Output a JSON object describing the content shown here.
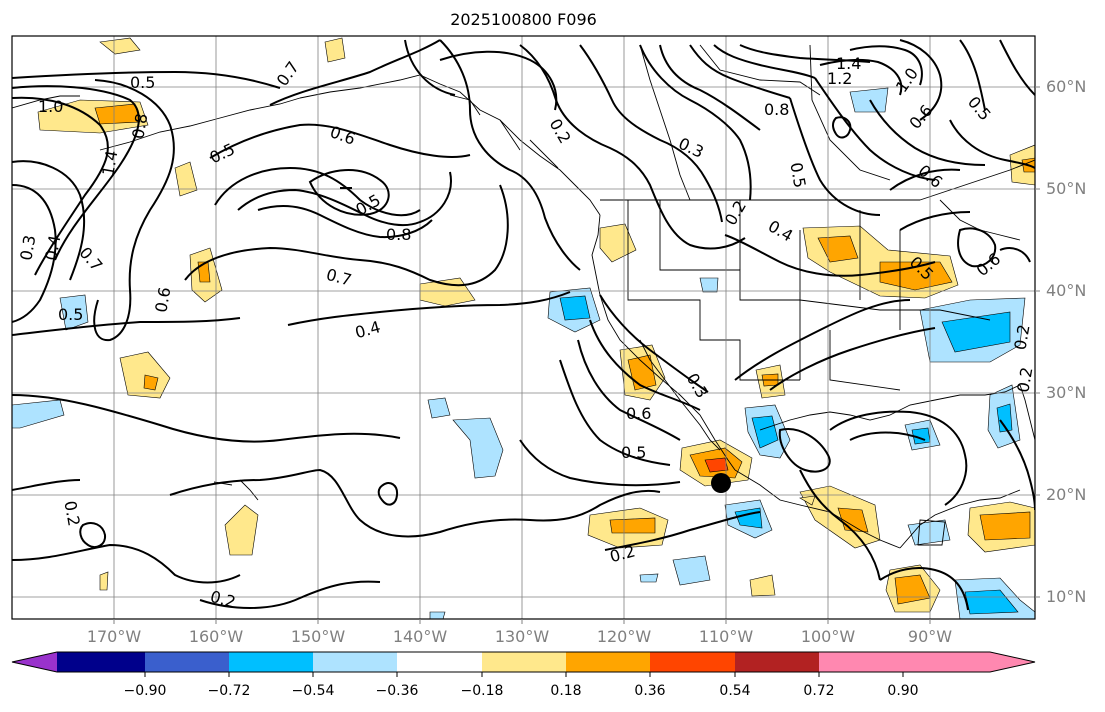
{
  "title": "2025100800 F096",
  "lat_labels": [
    "60°N",
    "50°N",
    "40°N",
    "30°N",
    "20°N",
    "10°N"
  ],
  "lon_labels": [
    "170°W",
    "160°W",
    "150°W",
    "140°W",
    "130°W",
    "120°W",
    "110°W",
    "100°W",
    "90°W"
  ],
  "colorbar": {
    "tick_labels": [
      "−0.90",
      "−0.72",
      "−0.54",
      "−0.36",
      "−0.18",
      "0.18",
      "0.36",
      "0.54",
      "0.72",
      "0.90"
    ],
    "colors": [
      "#9932cc",
      "#00008b",
      "#3a5fcd",
      "#00bfff",
      "#aee3ff",
      "#ffffff",
      "#ffe88c",
      "#ffa500",
      "#ff4500",
      "#b22222",
      "#ff88b0"
    ]
  },
  "contour_labels": [
    "1.4",
    "1.2",
    "1.0",
    "0.8",
    "0.6",
    "0.5",
    "0.3",
    "0.2",
    "0.2",
    "0.7",
    "0.5",
    "0.6",
    "1.4",
    "1.0",
    "0.8",
    "0.5",
    "0.6",
    "0.5",
    "0.3",
    "0.4",
    "0.7",
    "0.5",
    "0.6",
    "0.8",
    "0.7",
    "0.4",
    "0.2",
    "0.2",
    "0.2",
    "0.3",
    "0.6",
    "0.5",
    "0.2",
    "0.5",
    "0.6",
    "0.5",
    "0.4",
    "0.2"
  ],
  "marker": {
    "label": "storm-center",
    "color": "#000000"
  }
}
